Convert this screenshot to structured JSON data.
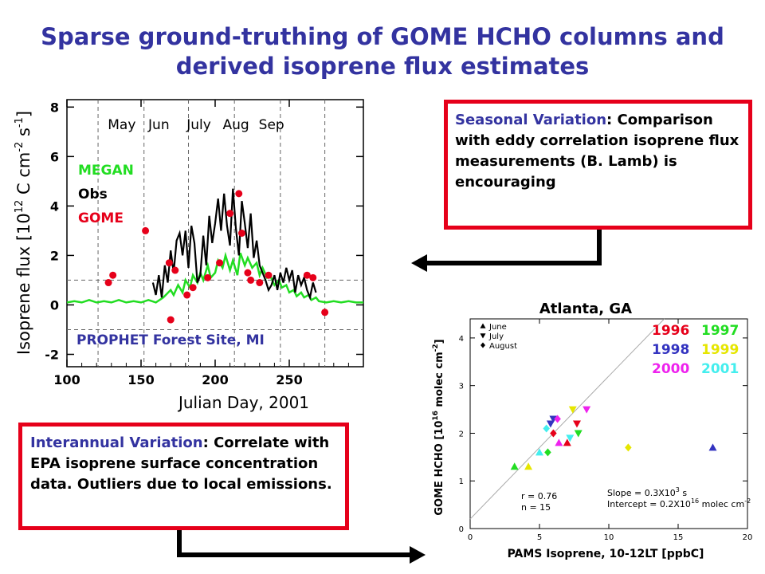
{
  "title": {
    "line1": "Sparse ground-truthing of GOME HCHO columns and",
    "line2": "derived isoprene flux estimates"
  },
  "seasonal_box": {
    "heading": "Seasonal Variation",
    "colon": ":",
    "body": "Comparison with eddy correlation isoprene flux measurements (B. Lamb) is encouraging"
  },
  "interannual_box": {
    "heading": "Interannual Variation",
    "body": ": Correlate with EPA isoprene surface concentration data. Outliers due to local emissions."
  },
  "colors": {
    "megan": "#22dd22",
    "obs": "#000000",
    "gome": "#e6001a",
    "title": "#3333a0",
    "box": "#e6001a"
  },
  "chart_data": [
    {
      "type": "line",
      "xlabel": "Julian Day, 2001",
      "ylabel": "Isoprene flux [10^12 C cm^-2 s^-1]",
      "ylabel_parts": {
        "a": "Isoprene flux [10",
        "b": "12",
        "c": " C cm",
        "d": "-2",
        "e": " s",
        "f": "-1",
        "g": "]"
      },
      "site_label": "PROPHET Forest Site, MI",
      "xlim": [
        100,
        300
      ],
      "ylim": [
        -2.5,
        8.3
      ],
      "xticks": [
        100,
        150,
        200,
        250
      ],
      "yticks": [
        -2,
        0,
        2,
        4,
        6,
        8
      ],
      "month_labels": [
        {
          "label": "May",
          "x": 137
        },
        {
          "label": "Jun",
          "x": 162
        },
        {
          "label": "July",
          "x": 189
        },
        {
          "label": "Aug",
          "x": 214
        },
        {
          "label": "Sep",
          "x": 238
        }
      ],
      "month_boundaries": [
        121,
        152,
        182,
        213,
        244,
        274
      ],
      "dashed_levels": [
        -1,
        1
      ],
      "legend_labels": {
        "megan": "MEGAN",
        "obs": "Obs",
        "gome": "GOME"
      },
      "series": [
        {
          "name": "MEGAN",
          "x": [
            100,
            105,
            110,
            115,
            120,
            125,
            130,
            135,
            140,
            145,
            150,
            155,
            160,
            165,
            170,
            172,
            175,
            178,
            180,
            183,
            185,
            188,
            190,
            192,
            195,
            197,
            200,
            202,
            205,
            207,
            210,
            212,
            215,
            217,
            220,
            222,
            225,
            228,
            230,
            232,
            235,
            237,
            240,
            243,
            245,
            248,
            250,
            253,
            255,
            258,
            260,
            263,
            265,
            268,
            270,
            275,
            280,
            285,
            290,
            295,
            300
          ],
          "y": [
            0.1,
            0.15,
            0.1,
            0.2,
            0.1,
            0.15,
            0.1,
            0.2,
            0.1,
            0.15,
            0.1,
            0.2,
            0.1,
            0.3,
            0.6,
            0.4,
            0.8,
            0.5,
            1.0,
            0.7,
            1.2,
            0.9,
            1.3,
            1.0,
            1.6,
            1.1,
            1.3,
            1.8,
            1.5,
            2.0,
            1.4,
            1.8,
            1.2,
            2.1,
            1.6,
            1.9,
            1.5,
            1.7,
            1.2,
            1.5,
            1.1,
            1.2,
            0.8,
            1.0,
            0.7,
            0.8,
            0.5,
            0.6,
            0.35,
            0.5,
            0.3,
            0.4,
            0.2,
            0.3,
            0.15,
            0.1,
            0.15,
            0.1,
            0.15,
            0.1,
            0.1
          ]
        },
        {
          "name": "Obs",
          "x": [
            158,
            160,
            162,
            164,
            166,
            168,
            170,
            172,
            174,
            176,
            178,
            180,
            182,
            184,
            186,
            188,
            190,
            192,
            194,
            196,
            198,
            200,
            202,
            204,
            206,
            208,
            210,
            212,
            214,
            216,
            218,
            220,
            222,
            224,
            226,
            228,
            230,
            232,
            234,
            236,
            238,
            240,
            242,
            244,
            246,
            248,
            250,
            252,
            254,
            256,
            258,
            260,
            262,
            264,
            266,
            268
          ],
          "y": [
            0.9,
            0.4,
            1.2,
            0.3,
            1.6,
            0.9,
            2.2,
            1.3,
            2.6,
            2.9,
            2.0,
            3.0,
            1.5,
            3.2,
            2.5,
            0.9,
            1.2,
            2.8,
            1.6,
            3.6,
            2.5,
            3.3,
            4.3,
            3.0,
            4.5,
            3.2,
            2.4,
            4.7,
            3.1,
            2.0,
            4.2,
            3.3,
            2.3,
            3.7,
            1.9,
            2.6,
            1.6,
            1.3,
            1.0,
            0.6,
            0.8,
            1.2,
            0.6,
            1.3,
            0.9,
            1.5,
            1.0,
            1.4,
            0.5,
            1.2,
            0.8,
            1.1,
            0.6,
            0.3,
            0.9,
            0.5
          ]
        },
        {
          "name": "GOME",
          "x": [
            128,
            131,
            153,
            169,
            170,
            173,
            181,
            185,
            195,
            203,
            210,
            216,
            218,
            222,
            224,
            230,
            236,
            262,
            266,
            274
          ],
          "y": [
            0.9,
            1.2,
            3.0,
            1.7,
            -0.6,
            1.4,
            0.4,
            0.7,
            1.1,
            1.7,
            3.7,
            4.5,
            2.9,
            1.3,
            1.0,
            0.9,
            1.2,
            1.2,
            1.1,
            -0.3
          ]
        }
      ]
    },
    {
      "type": "scatter",
      "title": "Atlanta, GA",
      "xlabel": "PAMS Isoprene, 10-12LT [ppbC]",
      "ylabel": "GOME HCHO [10^16 molec cm^-2]",
      "ylabel_parts": {
        "a": "GOME HCHO [10",
        "b": "16",
        "c": " molec cm",
        "d": "-2",
        "e": "]"
      },
      "xlim": [
        0,
        20
      ],
      "ylim": [
        0,
        4.4
      ],
      "xticks": [
        0,
        5,
        10,
        15,
        20
      ],
      "yticks": [
        0,
        1,
        2,
        3,
        4
      ],
      "marker_legend": [
        {
          "label": "June",
          "marker": "triangle-up"
        },
        {
          "label": "July",
          "marker": "triangle-down"
        },
        {
          "label": "August",
          "marker": "diamond"
        }
      ],
      "year_legend": [
        {
          "label": "1996",
          "color": "#e6001a"
        },
        {
          "label": "1997",
          "color": "#22dd22"
        },
        {
          "label": "1998",
          "color": "#3333c0"
        },
        {
          "label": "1999",
          "color": "#e6e600"
        },
        {
          "label": "2000",
          "color": "#ee22ee"
        },
        {
          "label": "2001",
          "color": "#44eeee"
        }
      ],
      "stats": {
        "r": "r = 0.76",
        "n": "n = 15"
      },
      "fit_text": {
        "slope_a": "Slope = 0.3X10",
        "slope_b": "3",
        "slope_c": " s",
        "int_a": "Intercept = 0.2X10",
        "int_b": "16",
        "int_c": " molec cm",
        "int_d": "-2"
      },
      "fit_line": {
        "slope": 0.3,
        "intercept": 0.2
      },
      "points": [
        {
          "x": 3.2,
          "y": 1.3,
          "marker": "triangle-up",
          "color": "#22dd22"
        },
        {
          "x": 4.2,
          "y": 1.3,
          "marker": "triangle-up",
          "color": "#e6e600"
        },
        {
          "x": 5.0,
          "y": 1.6,
          "marker": "triangle-up",
          "color": "#44eeee"
        },
        {
          "x": 5.6,
          "y": 1.6,
          "marker": "diamond",
          "color": "#22dd22"
        },
        {
          "x": 5.5,
          "y": 2.1,
          "marker": "diamond",
          "color": "#44eeee"
        },
        {
          "x": 5.8,
          "y": 2.2,
          "marker": "triangle-down",
          "color": "#3333c0"
        },
        {
          "x": 6.0,
          "y": 2.3,
          "marker": "triangle-down",
          "color": "#3333c0"
        },
        {
          "x": 6.3,
          "y": 2.3,
          "marker": "diamond",
          "color": "#ee22ee"
        },
        {
          "x": 6.0,
          "y": 2.0,
          "marker": "diamond",
          "color": "#e6001a"
        },
        {
          "x": 6.4,
          "y": 1.8,
          "marker": "triangle-up",
          "color": "#ee22ee"
        },
        {
          "x": 7.0,
          "y": 1.8,
          "marker": "triangle-up",
          "color": "#e6001a"
        },
        {
          "x": 7.2,
          "y": 1.9,
          "marker": "triangle-down",
          "color": "#44eeee"
        },
        {
          "x": 7.4,
          "y": 2.5,
          "marker": "triangle-down",
          "color": "#e6e600"
        },
        {
          "x": 7.7,
          "y": 2.2,
          "marker": "triangle-down",
          "color": "#e6001a"
        },
        {
          "x": 7.8,
          "y": 2.0,
          "marker": "triangle-down",
          "color": "#22dd22"
        },
        {
          "x": 8.4,
          "y": 2.5,
          "marker": "triangle-down",
          "color": "#ee22ee"
        },
        {
          "x": 11.4,
          "y": 1.7,
          "marker": "diamond",
          "color": "#e6e600"
        },
        {
          "x": 17.5,
          "y": 1.7,
          "marker": "triangle-up",
          "color": "#3333c0"
        }
      ]
    }
  ]
}
